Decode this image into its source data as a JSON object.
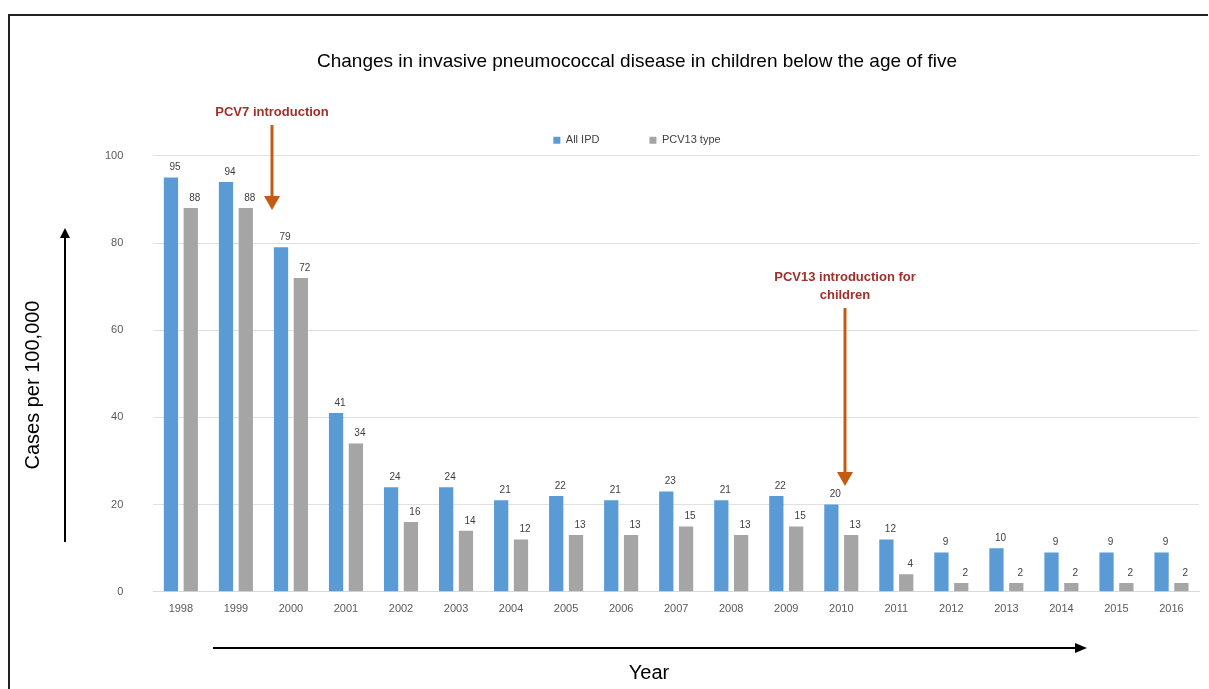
{
  "chart_data": {
    "type": "bar",
    "title": "Changes in invasive pneumococcal disease in children below the age of five",
    "xlabel": "Year",
    "ylabel": "Cases per 100,000",
    "categories": [
      "1998",
      "1999",
      "2000",
      "2001",
      "2002",
      "2003",
      "2004",
      "2005",
      "2006",
      "2007",
      "2008",
      "2009",
      "2010",
      "2011",
      "2012",
      "2013",
      "2014",
      "2015",
      "2016"
    ],
    "series": [
      {
        "name": "All IPD",
        "color": "#5b9bd5",
        "values": [
          95,
          94,
          79,
          41,
          24,
          24,
          21,
          22,
          21,
          23,
          21,
          22,
          20,
          12,
          9,
          10,
          9,
          9,
          9
        ]
      },
      {
        "name": "PCV13 type",
        "color": "#a5a5a5",
        "values": [
          88,
          88,
          72,
          34,
          16,
          14,
          12,
          13,
          13,
          15,
          13,
          15,
          13,
          4,
          2,
          2,
          2,
          2,
          2
        ]
      }
    ],
    "ylim": [
      0,
      100
    ],
    "yticks": [
      0,
      20,
      40,
      60,
      80,
      100
    ],
    "grid": "y",
    "legend": "top",
    "data_labels": true,
    "annotations": [
      "PCV7 introduction",
      "PCV13 introduction for children"
    ]
  }
}
